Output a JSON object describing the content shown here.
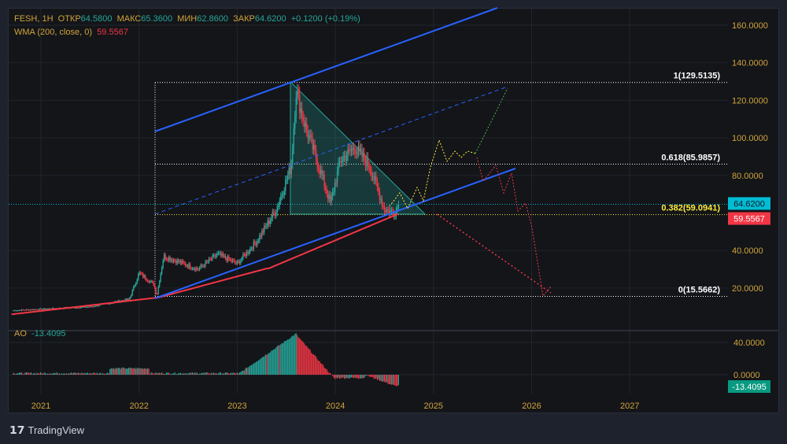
{
  "header": {
    "symbol": "FESH, 1H",
    "open_label": "ОТКР",
    "open": "64.5800",
    "high_label": "МАКС",
    "high": "65.3600",
    "low_label": "МИН",
    "low": "62.8600",
    "close_label": "ЗАКР",
    "close": "64.6200",
    "change": "+0.1200 (+0.19%)"
  },
  "wma": {
    "label": "WMA (200, close, 0)",
    "value": "59.5567"
  },
  "ao": {
    "label": "AO",
    "value": "-13.4095",
    "axis": [
      "40.0000",
      "0.0000"
    ]
  },
  "price_axis": [
    "160.0000",
    "140.0000",
    "120.0000",
    "100.0000",
    "80.0000",
    "40.0000",
    "20.0000"
  ],
  "price_tags": {
    "last": "64.6200",
    "wma": "59.5567"
  },
  "fib_labels": [
    "1(129.5135)",
    "0.618(85.9857)",
    "0.382(59.0941)",
    "0(15.5662)"
  ],
  "time_axis": [
    "2021",
    "2022",
    "2023",
    "2024",
    "2025",
    "2026",
    "2027"
  ],
  "brand": "TradingView",
  "colors": {
    "up": "#26a69a",
    "down": "#f23645",
    "channel": "#2962ff",
    "wma": "#f23645",
    "fib": "#ffffff",
    "fib_yellow": "#ffeb3b",
    "last": "#00bcd4"
  },
  "chart_data": {
    "type": "candlestick",
    "series_keypoints": [
      [
        2020.7,
        8
      ],
      [
        2021.5,
        10
      ],
      [
        2021.9,
        14
      ],
      [
        2022.0,
        28
      ],
      [
        2022.15,
        22
      ],
      [
        2022.18,
        16
      ],
      [
        2022.25,
        37
      ],
      [
        2022.6,
        30
      ],
      [
        2022.8,
        38
      ],
      [
        2023.0,
        33
      ],
      [
        2023.2,
        45
      ],
      [
        2023.4,
        62
      ],
      [
        2023.55,
        85
      ],
      [
        2023.6,
        125
      ],
      [
        2023.7,
        105
      ],
      [
        2023.8,
        90
      ],
      [
        2023.95,
        65
      ],
      [
        2024.05,
        88
      ],
      [
        2024.2,
        95
      ],
      [
        2024.35,
        85
      ],
      [
        2024.5,
        62
      ],
      [
        2024.6,
        60
      ],
      [
        2024.65,
        64.62
      ]
    ],
    "ylim": [
      0,
      170
    ],
    "xlim": [
      2020.7,
      2028
    ]
  }
}
